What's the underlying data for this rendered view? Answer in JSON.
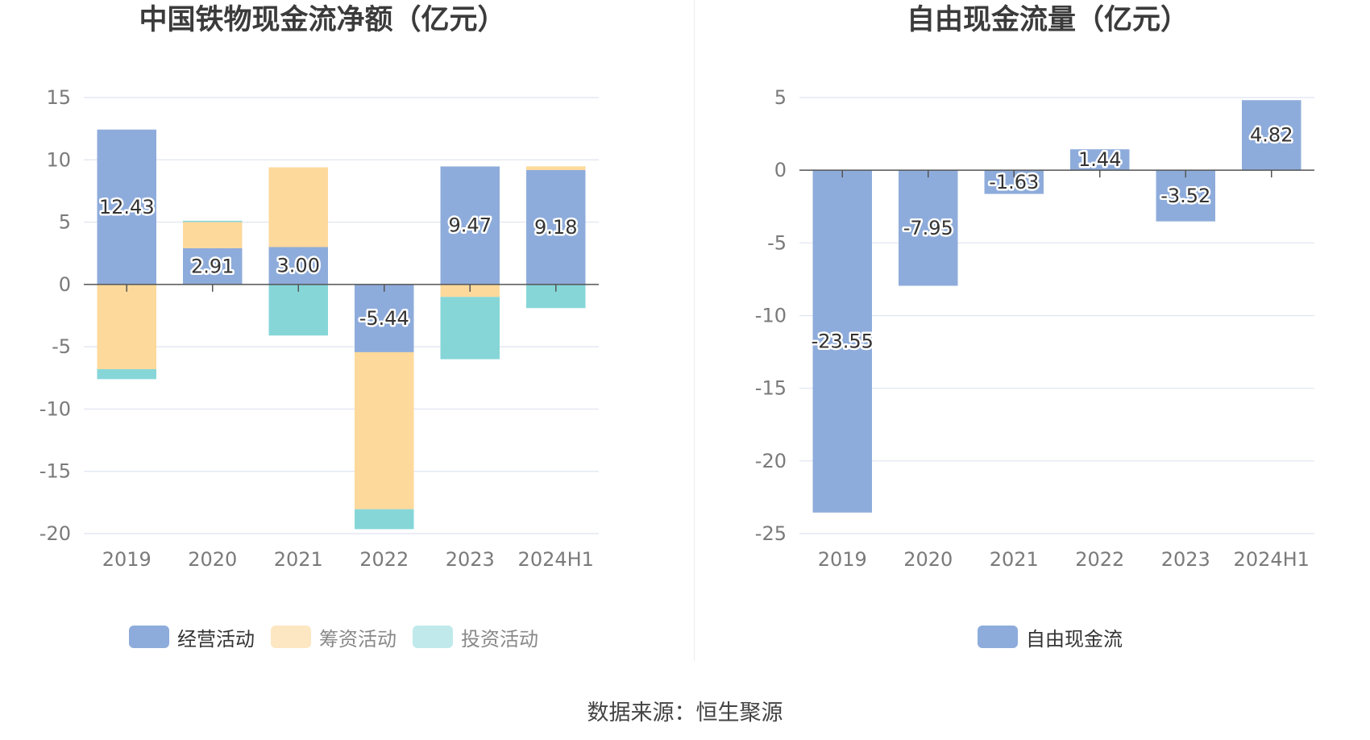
{
  "left_title": "中国铁物现金流净额（亿元）",
  "right_title": "自由现金流量（亿元）",
  "footer": "数据来源：恒生聚源",
  "colors": {
    "operating": "#8eacdb",
    "financing": "#fdd99b",
    "investing": "#86d6d8",
    "investing_legend": "#c0e9eb",
    "financing_legend": "#fde6c2",
    "free_cash_flow": "#8eacdb"
  },
  "chart_data": [
    {
      "type": "bar",
      "stacked": true,
      "title": "中国铁物现金流净额（亿元）",
      "categories": [
        "2019",
        "2020",
        "2021",
        "2022",
        "2023",
        "2024H1"
      ],
      "ylim": [
        -20,
        15
      ],
      "yticks": [
        15,
        10,
        5,
        0,
        -5,
        -10,
        -15,
        -20
      ],
      "grid": true,
      "legend_position": "bottom",
      "series": [
        {
          "name": "经营活动",
          "values": [
            12.43,
            2.91,
            3.0,
            -5.44,
            9.47,
            9.18
          ],
          "labels": [
            "12.43",
            "2.91",
            "3.00",
            "-5.44",
            "9.47",
            "9.18"
          ]
        },
        {
          "name": "筹资活动",
          "values": [
            -6.8,
            2.1,
            6.4,
            -12.6,
            -1.0,
            0.3
          ]
        },
        {
          "name": "投资活动",
          "values": [
            -0.8,
            0.1,
            -4.1,
            -1.6,
            -5.0,
            -1.9
          ]
        }
      ]
    },
    {
      "type": "bar",
      "title": "自由现金流量（亿元）",
      "categories": [
        "2019",
        "2020",
        "2021",
        "2022",
        "2023",
        "2024H1"
      ],
      "ylim": [
        -25,
        5
      ],
      "yticks": [
        5,
        0,
        -5,
        -10,
        -15,
        -20,
        -25
      ],
      "grid": true,
      "legend_position": "bottom",
      "series": [
        {
          "name": "自由现金流",
          "values": [
            -23.55,
            -7.95,
            -1.63,
            1.44,
            -3.52,
            4.82
          ],
          "labels": [
            "-23.55",
            "-7.95",
            "-1.63",
            "1.44",
            "-3.52",
            "4.82"
          ]
        }
      ]
    }
  ]
}
